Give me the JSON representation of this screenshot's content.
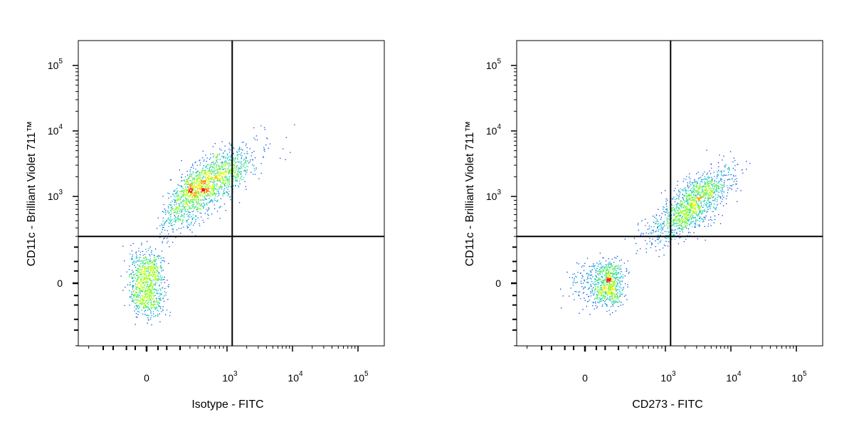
{
  "chart_data": [
    {
      "type": "scatter",
      "scale": "biexponential",
      "xlabel": "Isotype - FITC",
      "ylabel": "CD11c - Brilliant Violet 711™",
      "x_ticks": [
        {
          "value": 0,
          "base": "0",
          "exp": ""
        },
        {
          "value": 1000,
          "base": "10",
          "exp": "3"
        },
        {
          "value": 10000,
          "base": "10",
          "exp": "4"
        },
        {
          "value": 100000,
          "base": "10",
          "exp": "5"
        }
      ],
      "y_ticks": [
        {
          "value": 0,
          "base": "0",
          "exp": ""
        },
        {
          "value": 1000,
          "base": "10",
          "exp": "3"
        },
        {
          "value": 10000,
          "base": "10",
          "exp": "4"
        },
        {
          "value": 100000,
          "base": "10",
          "exp": "5"
        }
      ],
      "quadrant_gate": {
        "x": 1200,
        "y": 300
      },
      "populations": [
        {
          "name": "negative",
          "center": [
            0,
            0
          ],
          "spread": [
            40,
            80
          ],
          "points": 900,
          "density": "high"
        },
        {
          "name": "positive",
          "center": [
            500,
            1500
          ],
          "spread": [
            0.35,
            0.28
          ],
          "points": 1700,
          "density": "medium"
        }
      ]
    },
    {
      "type": "scatter",
      "scale": "biexponential",
      "xlabel": "CD273 - FITC",
      "ylabel": "CD11c - Brilliant Violet 711™",
      "x_ticks": [
        {
          "value": 0,
          "base": "0",
          "exp": ""
        },
        {
          "value": 1000,
          "base": "10",
          "exp": "3"
        },
        {
          "value": 10000,
          "base": "10",
          "exp": "4"
        },
        {
          "value": 100000,
          "base": "10",
          "exp": "5"
        }
      ],
      "y_ticks": [
        {
          "value": 0,
          "base": "0",
          "exp": ""
        },
        {
          "value": 1000,
          "base": "10",
          "exp": "3"
        },
        {
          "value": 10000,
          "base": "10",
          "exp": "4"
        },
        {
          "value": 100000,
          "base": "10",
          "exp": "5"
        }
      ],
      "quadrant_gate": {
        "x": 1200,
        "y": 300
      },
      "populations": [
        {
          "name": "negative",
          "center": [
            100,
            0
          ],
          "spread": [
            70,
            50
          ],
          "points": 800,
          "density": "high"
        },
        {
          "name": "positive",
          "center": [
            2500,
            800
          ],
          "spread": [
            0.3,
            0.25
          ],
          "points": 1400,
          "density": "medium"
        }
      ]
    }
  ],
  "colors": {
    "density_low": "#0000ff",
    "density_mid": "#00c8c8",
    "density_high": "#ffff00",
    "density_peak": "#ff0000",
    "axis": "#000000",
    "gate_line": "#000000"
  }
}
